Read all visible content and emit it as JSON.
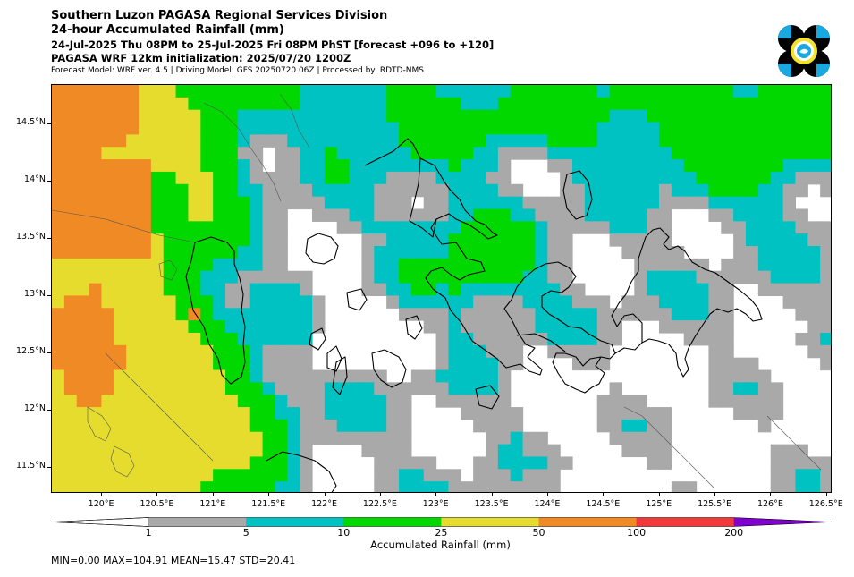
{
  "header": {
    "line1": "Southern Luzon PAGASA Regional Services Division",
    "line2": "24-hour Accumulated Rainfall (mm)",
    "line3": "24-Jul-2025 Thu 08PM to 25-Jul-2025 Fri 08PM PhST [forecast +096 to +120]",
    "line4": "PAGASA WRF 12km initialization: 2025/07/20 1200Z",
    "line5": "Forecast Model: WRF ver. 4.5 | Driving Model: GFS 20250720 06Z | Processed by: RDTD-NMS"
  },
  "logo": {
    "icon": "pagasa-logo-icon",
    "colors": [
      "#000000",
      "#19a8e0",
      "#f3e12a"
    ]
  },
  "map": {
    "extent": {
      "lon_min": 119.55,
      "lon_max": 126.55,
      "lat_min": 11.27,
      "lat_max": 14.84
    },
    "lat_ticks": [
      {
        "value": 11.5,
        "label": "11.5°N"
      },
      {
        "value": 12,
        "label": "12°N"
      },
      {
        "value": 12.5,
        "label": "12.5°N"
      },
      {
        "value": 13,
        "label": "13°N"
      },
      {
        "value": 13.5,
        "label": "13.5°N"
      },
      {
        "value": 14,
        "label": "14°N"
      },
      {
        "value": 14.5,
        "label": "14.5°N"
      }
    ],
    "lon_ticks": [
      {
        "value": 120,
        "label": "120°E"
      },
      {
        "value": 120.5,
        "label": "120.5°E"
      },
      {
        "value": 121,
        "label": "121°E"
      },
      {
        "value": 121.5,
        "label": "121.5°E"
      },
      {
        "value": 122,
        "label": "122°E"
      },
      {
        "value": 122.5,
        "label": "122.5°E"
      },
      {
        "value": 123,
        "label": "123°E"
      },
      {
        "value": 123.5,
        "label": "123.5°E"
      },
      {
        "value": 124,
        "label": "124°E"
      },
      {
        "value": 124.5,
        "label": "124.5°E"
      },
      {
        "value": 125,
        "label": "125°E"
      },
      {
        "value": 125.5,
        "label": "125.5°E"
      },
      {
        "value": 126,
        "label": "126°E"
      },
      {
        "value": 126.5,
        "label": "126.5°E"
      }
    ]
  },
  "colorbar": {
    "title": "Accumulated Rainfall (mm)",
    "bins": [
      {
        "min": 0,
        "max": 1,
        "color": "#ffffff"
      },
      {
        "min": 1,
        "max": 5,
        "color": "#a9a9a9"
      },
      {
        "min": 5,
        "max": 10,
        "color": "#00c2c2"
      },
      {
        "min": 10,
        "max": 25,
        "color": "#00d800"
      },
      {
        "min": 25,
        "max": 50,
        "color": "#e6dc2e"
      },
      {
        "min": 50,
        "max": 100,
        "color": "#f08a24"
      },
      {
        "min": 100,
        "max": 200,
        "color": "#f23838"
      },
      {
        "min": 200,
        "max": null,
        "color": "#8000d0"
      }
    ],
    "labels": [
      "1",
      "5",
      "10",
      "25",
      "50",
      "100",
      "200"
    ]
  },
  "stats": {
    "text": "MIN=0.00   MAX=104.91   MEAN=15.47   STD=20.41",
    "min": 0.0,
    "max": 104.91,
    "mean": 15.47,
    "std": 20.41
  }
}
